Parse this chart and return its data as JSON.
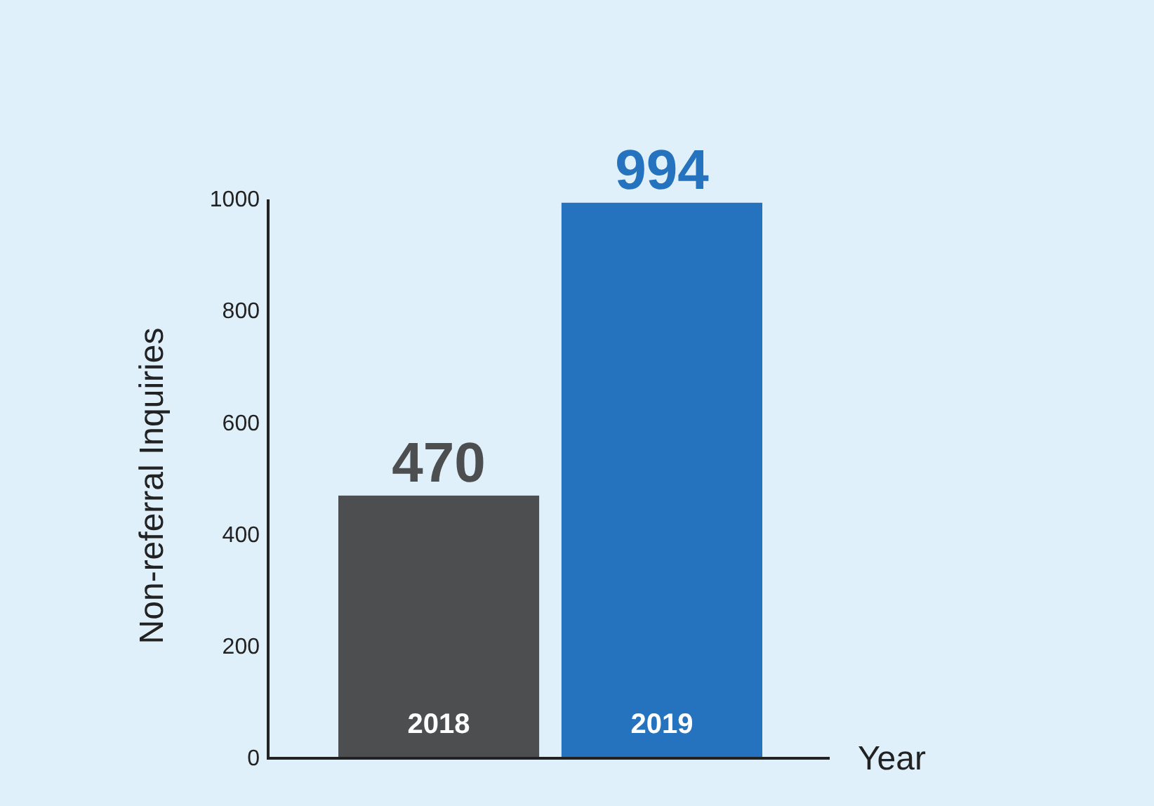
{
  "chart_data": {
    "type": "bar",
    "xlabel": "Year",
    "ylabel": "Non-referral Inquiries",
    "categories": [
      "2018",
      "2019"
    ],
    "values": [
      470,
      994
    ],
    "colors": [
      "#4d4e50",
      "#2572bf"
    ],
    "ylim": [
      0,
      1000
    ],
    "yticks": [
      0,
      200,
      400,
      600,
      800,
      1000
    ],
    "data_labels": true
  }
}
